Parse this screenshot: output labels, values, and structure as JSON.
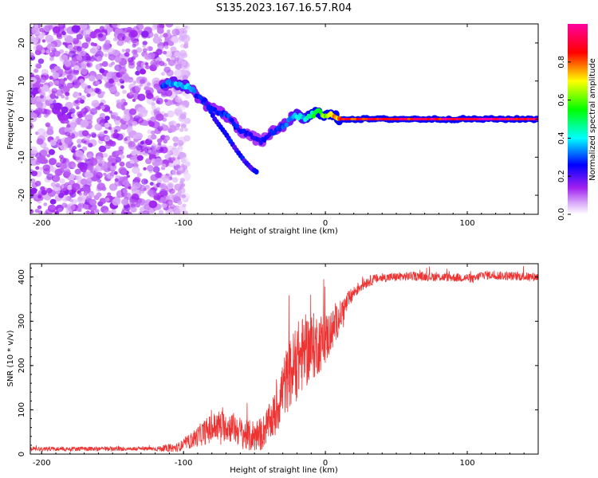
{
  "title": "S135.2023.167.16.57.R04",
  "chart_data": [
    {
      "type": "heatmap",
      "name": "spectrogram",
      "xlabel": "Height of straight line (km)",
      "ylabel": "Frequency (Hz)",
      "xlim": [
        -208,
        150
      ],
      "ylim": [
        -25,
        25
      ],
      "xticks": [
        -200,
        -100,
        0,
        100
      ],
      "yticks": [
        -20,
        -10,
        0,
        10,
        20
      ],
      "colorbar": {
        "label": "Normalized spectral amplitude",
        "range": [
          0,
          1
        ],
        "ticks": [
          "0.0",
          "0.2",
          "0.4",
          "0.6",
          "0.8"
        ],
        "colors": [
          "#ffffff",
          "#a020f0",
          "#0000ff",
          "#00ffff",
          "#00ff00",
          "#ffff00",
          "#ff0000",
          "#ff00ff"
        ]
      },
      "ridge": {
        "x": [
          -115,
          -108,
          -100,
          -95,
          -90,
          -85,
          -80,
          -75,
          -70,
          -65,
          -60,
          -55,
          -50,
          -45,
          -40,
          -35,
          -30,
          -25,
          -20,
          -15,
          -10,
          -5,
          0,
          5,
          10,
          20,
          40,
          60,
          80,
          100,
          120,
          150
        ],
        "y": [
          9,
          9.5,
          9,
          8,
          6,
          4,
          3,
          2,
          1,
          -1,
          -3,
          -4,
          -5,
          -6,
          -4,
          -3,
          -2,
          0,
          1,
          0,
          1,
          2,
          1,
          1,
          0,
          0,
          0,
          0,
          0,
          0,
          0,
          0
        ],
        "amplitude": [
          0.3,
          0.35,
          0.4,
          0.35,
          0.3,
          0.28,
          0.28,
          0.26,
          0.3,
          0.28,
          0.25,
          0.25,
          0.25,
          0.25,
          0.25,
          0.28,
          0.3,
          0.35,
          0.4,
          0.4,
          0.5,
          0.55,
          0.65,
          0.7,
          0.85,
          0.88,
          0.9,
          0.92,
          0.95,
          0.95,
          0.95,
          0.95
        ]
      },
      "secondary_branch": {
        "x": [
          -85,
          -78,
          -70,
          -63,
          -57,
          -52,
          -48
        ],
        "y": [
          5,
          0,
          -4,
          -8,
          -11,
          -13,
          -14
        ]
      },
      "noise_region_x": [
        -208,
        -97
      ]
    },
    {
      "type": "line",
      "name": "snr",
      "xlabel": "Height of straight line (km)",
      "ylabel": "SNR (10 * v/v)",
      "xlim": [
        -208,
        150
      ],
      "ylim": [
        0,
        430
      ],
      "xticks": [
        -200,
        -100,
        0,
        100
      ],
      "yticks": [
        0,
        100,
        200,
        300,
        400
      ],
      "color": "#ee3333",
      "trend": {
        "x": [
          -208,
          -120,
          -105,
          -95,
          -85,
          -75,
          -65,
          -55,
          -45,
          -40,
          -35,
          -30,
          -25,
          -20,
          -15,
          -10,
          -5,
          0,
          5,
          10,
          15,
          20,
          25,
          30,
          35,
          40,
          50,
          60,
          80,
          100,
          105,
          110,
          130,
          150
        ],
        "y": [
          12,
          12,
          14,
          30,
          50,
          65,
          60,
          40,
          45,
          70,
          90,
          150,
          180,
          210,
          230,
          240,
          250,
          260,
          280,
          310,
          340,
          365,
          380,
          390,
          395,
          398,
          400,
          402,
          400,
          398,
          395,
          405,
          402,
          400
        ]
      },
      "noise_amplitude": {
        "x": [
          -208,
          -120,
          -100,
          -80,
          -60,
          -40,
          -30,
          -20,
          -10,
          0,
          10,
          20,
          40,
          80,
          150
        ],
        "y": [
          5,
          5,
          12,
          35,
          35,
          40,
          70,
          90,
          80,
          60,
          35,
          15,
          10,
          10,
          10
        ]
      }
    }
  ]
}
